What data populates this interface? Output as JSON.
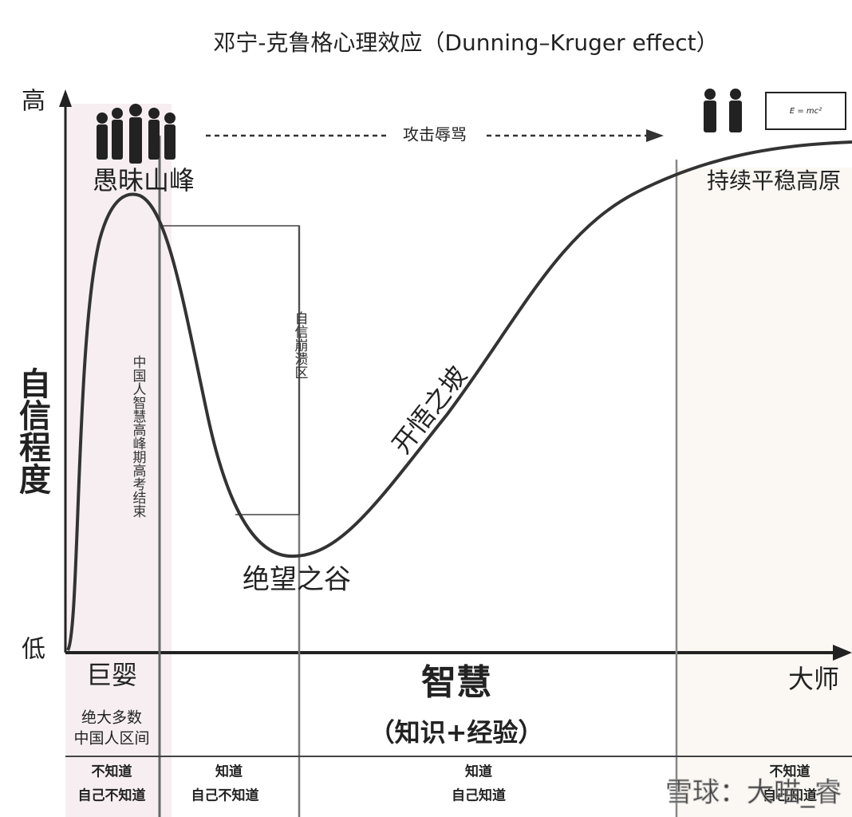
{
  "title": "邓宁-克鲁格心理效应（Dunning–Kruger effect）",
  "y_axis": {
    "label": "自信程度",
    "high": "高",
    "low": "低"
  },
  "x_axis": {
    "label": "智慧",
    "sublabel": "（知识+经验）"
  },
  "annotations": {
    "peak": "愚昧山峰",
    "attack": "攻击辱骂",
    "plateau": "持续平稳高原",
    "exam": "中国人智慧高峰期高考结束",
    "collapse": "自信崩溃区",
    "slope": "开悟之坡",
    "valley": "绝望之谷",
    "formula": "E = mc²"
  },
  "stages": {
    "infant": "巨婴",
    "master": "大师",
    "majority_line1": "绝大多数",
    "majority_line2": "中国人区间"
  },
  "quadrants": [
    {
      "line1": "不知道",
      "line2": "自己不知道"
    },
    {
      "line1": "知道",
      "line2": "自己不知道"
    },
    {
      "line1": "知道",
      "line2": "自己知道"
    },
    {
      "line1": "不知道",
      "line2": "自己知道"
    }
  ],
  "watermark": "雪球：大喵_睿"
}
